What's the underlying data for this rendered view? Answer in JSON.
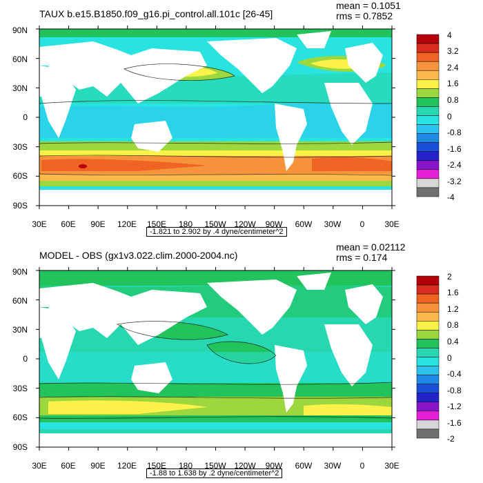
{
  "panels": [
    {
      "title": "TAUX b.e15.B1850.f09_g16.pi_control.all.101c [26-45]",
      "mean_text": "mean = 0.1051",
      "rms_text": "rms = 0.7852",
      "range_text": "-1.821 to 2.902 by .4 dyne/centimeter^2",
      "lat_labels": [
        "90N",
        "60N",
        "30N",
        "0",
        "30S",
        "60S",
        "90S"
      ],
      "lon_labels": [
        "30E",
        "60E",
        "90E",
        "120E",
        "150E",
        "180",
        "150W",
        "120W",
        "90W",
        "60W",
        "30W",
        "0",
        "30E"
      ],
      "colorbar_labels": [
        "4",
        "3.2",
        "2.4",
        "1.6",
        "0.8",
        "0",
        "-0.8",
        "-1.6",
        "-2.4",
        "-3.2",
        "-4"
      ],
      "colorbar_colors": [
        "#b3000b",
        "#d92d1f",
        "#ef6324",
        "#f7943b",
        "#fbb84b",
        "#fdf24a",
        "#9cd73d",
        "#22c35c",
        "#27d7b0",
        "#28e3e0",
        "#2bc3ee",
        "#1f8ae6",
        "#1b4ed9",
        "#2323c9",
        "#8a14c9",
        "#e61fd5",
        "#d6d6d6",
        "#6f6f6f"
      ]
    },
    {
      "title": "MODEL - OBS (gx1v3.022.clim.2000-2004.nc)",
      "mean_text": "mean = 0.02112",
      "rms_text": "rms = 0.174",
      "range_text": "-1.88 to 1.638 by .2 dyne/centimeter^2",
      "lat_labels": [
        "90N",
        "60N",
        "30N",
        "0",
        "30S",
        "60S",
        "90S"
      ],
      "lon_labels": [
        "30E",
        "60E",
        "90E",
        "120E",
        "150E",
        "180",
        "150W",
        "120W",
        "90W",
        "60W",
        "30W",
        "0",
        "30E"
      ],
      "colorbar_labels": [
        "2",
        "1.6",
        "1.2",
        "0.8",
        "0.4",
        "0",
        "-0.4",
        "-0.8",
        "-1.2",
        "-1.6",
        "-2"
      ],
      "colorbar_colors": [
        "#b3000b",
        "#d92d1f",
        "#ef6324",
        "#f7943b",
        "#fbb84b",
        "#fdf24a",
        "#9cd73d",
        "#22c35c",
        "#27d7b0",
        "#28e3e0",
        "#2bc3ee",
        "#1f8ae6",
        "#1b4ed9",
        "#2323c9",
        "#8a14c9",
        "#e61fd5",
        "#d6d6d6",
        "#6f6f6f"
      ]
    }
  ],
  "colors": {
    "land": "#ffffff",
    "ocean_bg": "#2bd9c8"
  }
}
